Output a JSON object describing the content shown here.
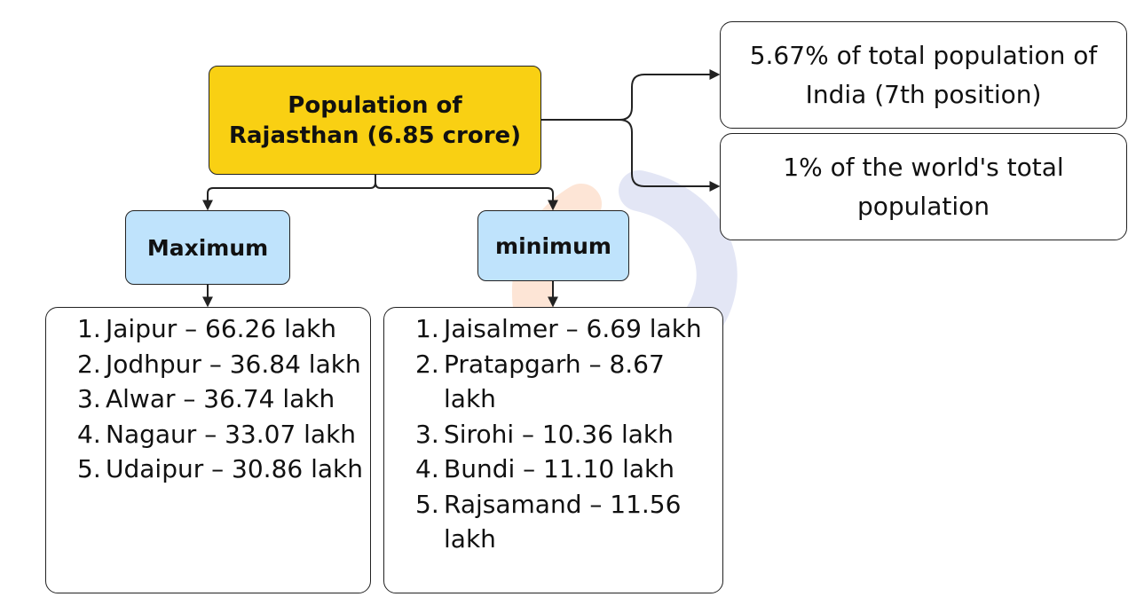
{
  "root": {
    "line1": "Population of",
    "line2": "Rajasthan (6.85 crore)"
  },
  "facts": [
    {
      "line1": "5.67% of total population of",
      "line2": "India (7th position)"
    },
    {
      "line1": "1% of the world's total",
      "line2": "population"
    }
  ],
  "maximum": {
    "label": "Maximum",
    "items": [
      {
        "num": "1.",
        "text": "Jaipur – 66.26 lakh"
      },
      {
        "num": "2.",
        "text": "Jodhpur – 36.84 lakh"
      },
      {
        "num": "3.",
        "text": "Alwar – 36.74 lakh"
      },
      {
        "num": "4.",
        "text": "Nagaur – 33.07 lakh"
      },
      {
        "num": "5.",
        "text": "Udaipur – 30.86 lakh"
      }
    ]
  },
  "minimum": {
    "label": "minimum",
    "items": [
      {
        "num": "1.",
        "text": "Jaisalmer – 6.69 lakh"
      },
      {
        "num": "2.",
        "text": "Pratapgarh – 8.67 lakh"
      },
      {
        "num": "3.",
        "text": "Sirohi – 10.36 lakh"
      },
      {
        "num": "4.",
        "text": "Bundi – 11.10 lakh"
      },
      {
        "num": "5.",
        "text": "Rajsamand – 11.56 lakh"
      }
    ]
  },
  "colors": {
    "root_fill": "#f9d013",
    "category_fill": "#bfe3fc",
    "box_border": "#222222",
    "watermark_orange": "#f7a26b",
    "watermark_blue": "#7f8fd0"
  }
}
